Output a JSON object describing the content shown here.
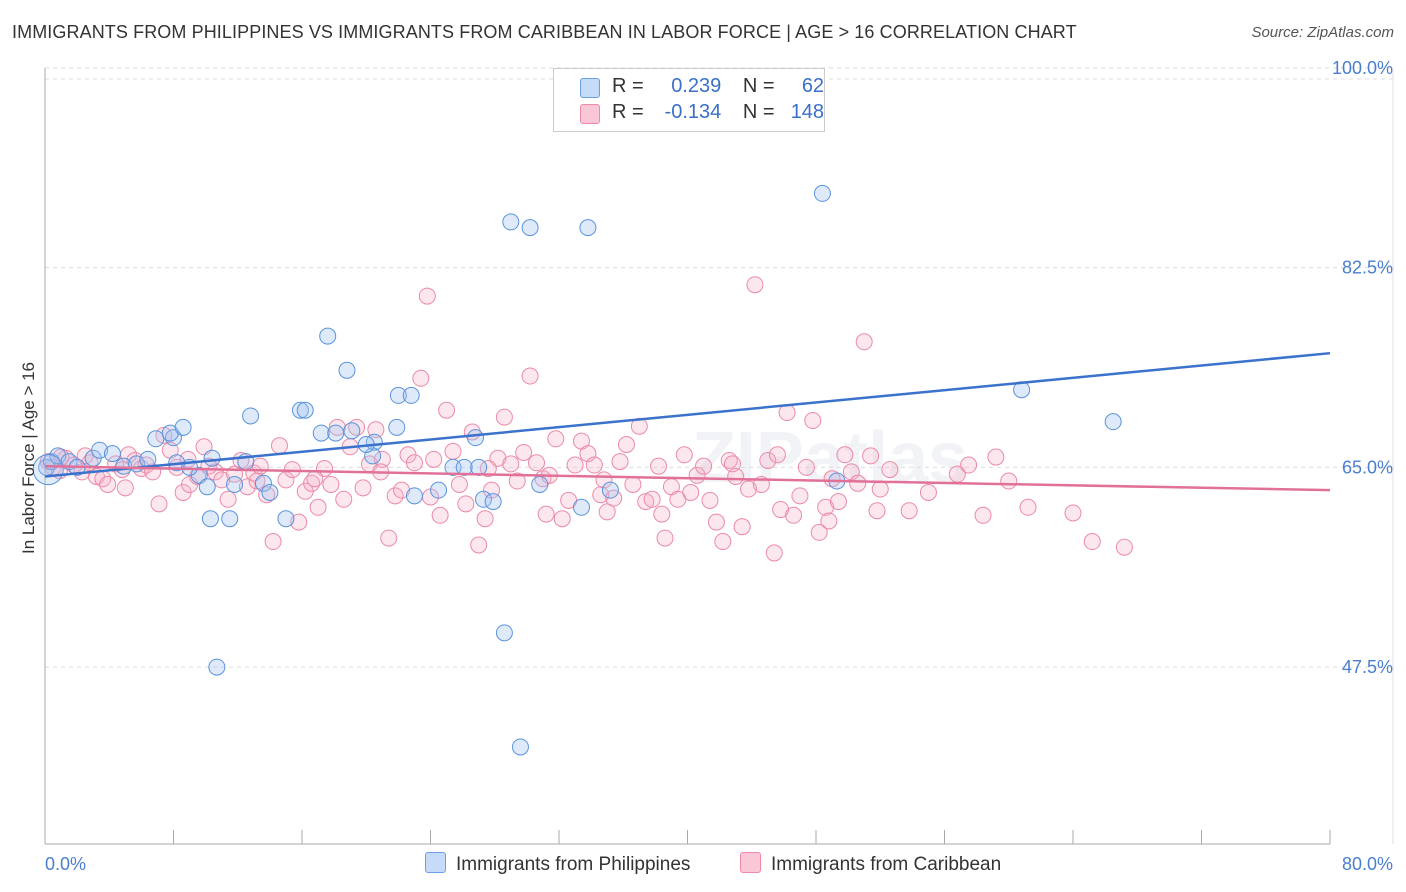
{
  "header": {
    "title": "IMMIGRANTS FROM PHILIPPINES VS IMMIGRANTS FROM CARIBBEAN IN LABOR FORCE | AGE > 16 CORRELATION CHART",
    "source": "Source: ZipAtlas.com"
  },
  "legend_top": [
    {
      "r_label": "R =",
      "r_value": "0.239",
      "n_label": "N =",
      "n_value": "62",
      "color": "#6aa0e8"
    },
    {
      "r_label": "R =",
      "r_value": "-0.134",
      "n_label": "N =",
      "n_value": "148",
      "color": "#f08aa8"
    }
  ],
  "watermark": "ZIPatlas",
  "chart_data": {
    "type": "scatter",
    "title": "IMMIGRANTS FROM PHILIPPINES VS IMMIGRANTS FROM CARIBBEAN IN LABOR FORCE | AGE > 16 CORRELATION CHART",
    "xlabel": "",
    "ylabel": "In Labor Force | Age > 16",
    "xlim": [
      0,
      80
    ],
    "ylim": [
      32,
      102
    ],
    "x_tick_labels": [
      "0.0%",
      "80.0%"
    ],
    "y_ticks": [
      47.5,
      65.0,
      82.5,
      100.0
    ],
    "y_tick_labels": [
      "47.5%",
      "65.0%",
      "82.5%",
      "100.0%"
    ],
    "grid": "horizontal dashed",
    "legend": "bottom-center",
    "series": [
      {
        "name": "Immigrants from Philippines",
        "color": "#6aa0e8",
        "trend": {
          "x": [
            0,
            80
          ],
          "y": [
            64.2,
            75.0
          ]
        },
        "points": [
          [
            0.1,
            65.0
          ],
          [
            0.4,
            65.5
          ],
          [
            0.8,
            66.0
          ],
          [
            1.5,
            65.5
          ],
          [
            2.0,
            65.0
          ],
          [
            3.0,
            65.8
          ],
          [
            3.4,
            66.5
          ],
          [
            4.2,
            66.2
          ],
          [
            4.9,
            65.1
          ],
          [
            5.7,
            65.3
          ],
          [
            6.4,
            65.7
          ],
          [
            6.9,
            67.5
          ],
          [
            8.0,
            67.6
          ],
          [
            8.2,
            65.4
          ],
          [
            7.8,
            68.0
          ],
          [
            8.6,
            68.5
          ],
          [
            9.6,
            64.3
          ],
          [
            9.0,
            65.0
          ],
          [
            10.1,
            63.3
          ],
          [
            10.3,
            60.5
          ],
          [
            10.4,
            65.8
          ],
          [
            10.7,
            47.5
          ],
          [
            11.5,
            60.5
          ],
          [
            11.8,
            63.5
          ],
          [
            12.5,
            65.5
          ],
          [
            12.8,
            69.5
          ],
          [
            13.6,
            63.6
          ],
          [
            14.0,
            62.8
          ],
          [
            15.0,
            60.5
          ],
          [
            15.9,
            70.0
          ],
          [
            16.2,
            70.0
          ],
          [
            17.2,
            68.0
          ],
          [
            17.6,
            76.5
          ],
          [
            18.1,
            68.0
          ],
          [
            18.8,
            73.5
          ],
          [
            19.1,
            68.2
          ],
          [
            20.5,
            67.2
          ],
          [
            20.4,
            66.0
          ],
          [
            21.9,
            68.5
          ],
          [
            22.0,
            71.3
          ],
          [
            22.8,
            71.3
          ],
          [
            23.0,
            62.5
          ],
          [
            24.5,
            63.0
          ],
          [
            25.4,
            65.0
          ],
          [
            26.1,
            65.0
          ],
          [
            26.8,
            67.6
          ],
          [
            27.3,
            62.2
          ],
          [
            27.9,
            62.0
          ],
          [
            28.6,
            50.5
          ],
          [
            29.0,
            86.5
          ],
          [
            30.2,
            86.0
          ],
          [
            30.8,
            63.5
          ],
          [
            33.4,
            61.5
          ],
          [
            33.8,
            86.0
          ],
          [
            35.2,
            63.0
          ],
          [
            29.6,
            40.5
          ],
          [
            48.4,
            89.0
          ],
          [
            49.3,
            63.8
          ],
          [
            60.8,
            71.8
          ],
          [
            66.5,
            69.0
          ],
          [
            27.0,
            65.0
          ],
          [
            20.0,
            67.0
          ]
        ]
      },
      {
        "name": "Immigrants from Caribbean",
        "color": "#f08aa8",
        "trend": {
          "x": [
            0,
            80
          ],
          "y": [
            65.1,
            63.0
          ]
        },
        "points": [
          [
            0.2,
            65.5
          ],
          [
            0.5,
            65.0
          ],
          [
            0.9,
            64.7
          ],
          [
            1.3,
            65.8
          ],
          [
            1.8,
            65.2
          ],
          [
            2.3,
            64.6
          ],
          [
            2.8,
            65.4
          ],
          [
            3.2,
            64.2
          ],
          [
            3.6,
            64.0
          ],
          [
            3.9,
            63.5
          ],
          [
            4.4,
            65.3
          ],
          [
            4.8,
            64.8
          ],
          [
            5.2,
            66.1
          ],
          [
            5.6,
            65.6
          ],
          [
            6.0,
            64.9
          ],
          [
            6.3,
            65.2
          ],
          [
            6.7,
            64.6
          ],
          [
            7.1,
            61.8
          ],
          [
            7.4,
            67.8
          ],
          [
            7.8,
            66.5
          ],
          [
            8.2,
            65.0
          ],
          [
            8.6,
            62.8
          ],
          [
            9.0,
            63.5
          ],
          [
            9.5,
            64.2
          ],
          [
            9.9,
            66.8
          ],
          [
            10.2,
            65.1
          ],
          [
            10.6,
            64.6
          ],
          [
            11.0,
            63.9
          ],
          [
            11.4,
            62.2
          ],
          [
            11.8,
            64.4
          ],
          [
            12.2,
            65.6
          ],
          [
            12.6,
            63.3
          ],
          [
            13.0,
            64.5
          ],
          [
            13.4,
            65.1
          ],
          [
            13.8,
            62.6
          ],
          [
            14.2,
            58.5
          ],
          [
            14.6,
            66.9
          ],
          [
            15.0,
            63.9
          ],
          [
            15.4,
            64.8
          ],
          [
            15.8,
            60.2
          ],
          [
            16.2,
            62.9
          ],
          [
            16.6,
            63.6
          ],
          [
            17.0,
            61.5
          ],
          [
            17.4,
            64.9
          ],
          [
            17.8,
            63.5
          ],
          [
            18.2,
            68.5
          ],
          [
            18.6,
            62.2
          ],
          [
            19.0,
            66.8
          ],
          [
            19.4,
            68.5
          ],
          [
            19.8,
            63.2
          ],
          [
            20.2,
            65.3
          ],
          [
            20.6,
            68.3
          ],
          [
            21.0,
            65.7
          ],
          [
            21.4,
            58.8
          ],
          [
            21.8,
            62.5
          ],
          [
            22.2,
            63.0
          ],
          [
            22.6,
            66.1
          ],
          [
            23.0,
            65.4
          ],
          [
            23.4,
            72.8
          ],
          [
            23.8,
            80.0
          ],
          [
            24.2,
            65.7
          ],
          [
            24.6,
            60.8
          ],
          [
            25.0,
            70.0
          ],
          [
            25.4,
            66.4
          ],
          [
            25.8,
            63.5
          ],
          [
            26.2,
            61.8
          ],
          [
            26.6,
            68.1
          ],
          [
            27.0,
            58.2
          ],
          [
            27.4,
            60.5
          ],
          [
            27.8,
            63.0
          ],
          [
            28.2,
            65.8
          ],
          [
            28.6,
            69.4
          ],
          [
            29.0,
            65.3
          ],
          [
            29.4,
            63.8
          ],
          [
            29.8,
            66.3
          ],
          [
            30.2,
            73.0
          ],
          [
            30.6,
            65.4
          ],
          [
            31.0,
            64.0
          ],
          [
            31.4,
            64.3
          ],
          [
            31.8,
            67.5
          ],
          [
            32.2,
            60.5
          ],
          [
            32.6,
            62.1
          ],
          [
            33.0,
            65.2
          ],
          [
            33.4,
            67.3
          ],
          [
            33.8,
            66.2
          ],
          [
            34.2,
            65.2
          ],
          [
            34.6,
            62.6
          ],
          [
            35.0,
            61.1
          ],
          [
            35.4,
            62.3
          ],
          [
            35.8,
            65.5
          ],
          [
            36.2,
            67.0
          ],
          [
            36.6,
            63.5
          ],
          [
            37.0,
            68.6
          ],
          [
            37.4,
            62.0
          ],
          [
            37.8,
            62.2
          ],
          [
            38.2,
            65.1
          ],
          [
            38.6,
            58.8
          ],
          [
            39.0,
            63.3
          ],
          [
            39.4,
            62.2
          ],
          [
            39.8,
            66.1
          ],
          [
            40.2,
            62.8
          ],
          [
            40.6,
            64.3
          ],
          [
            41.0,
            65.1
          ],
          [
            41.4,
            62.1
          ],
          [
            41.8,
            60.2
          ],
          [
            42.2,
            58.5
          ],
          [
            42.6,
            65.6
          ],
          [
            43.0,
            64.2
          ],
          [
            43.4,
            59.8
          ],
          [
            43.8,
            63.1
          ],
          [
            44.2,
            81.0
          ],
          [
            44.6,
            63.5
          ],
          [
            45.0,
            65.6
          ],
          [
            45.4,
            57.5
          ],
          [
            45.8,
            61.3
          ],
          [
            46.2,
            69.8
          ],
          [
            46.6,
            60.8
          ],
          [
            47.0,
            62.5
          ],
          [
            47.4,
            65.0
          ],
          [
            47.8,
            69.1
          ],
          [
            48.2,
            59.3
          ],
          [
            48.6,
            61.5
          ],
          [
            49.0,
            64.0
          ],
          [
            49.4,
            62.0
          ],
          [
            49.8,
            66.1
          ],
          [
            50.2,
            64.6
          ],
          [
            50.6,
            63.6
          ],
          [
            51.0,
            76.0
          ],
          [
            51.4,
            66.0
          ],
          [
            51.8,
            61.2
          ],
          [
            52.6,
            64.8
          ],
          [
            53.8,
            61.2
          ],
          [
            56.8,
            64.4
          ],
          [
            57.5,
            65.2
          ],
          [
            58.4,
            60.8
          ],
          [
            59.2,
            65.9
          ],
          [
            61.2,
            61.5
          ],
          [
            64.0,
            61.0
          ],
          [
            65.2,
            58.5
          ],
          [
            67.2,
            58.0
          ],
          [
            1.0,
            65.9
          ],
          [
            2.5,
            66.0
          ],
          [
            5.0,
            63.2
          ],
          [
            8.9,
            65.7
          ],
          [
            13.2,
            63.8
          ],
          [
            16.8,
            64.0
          ],
          [
            20.9,
            64.6
          ],
          [
            24.0,
            62.4
          ],
          [
            27.6,
            64.9
          ],
          [
            31.2,
            60.9
          ],
          [
            34.8,
            63.9
          ],
          [
            38.4,
            60.9
          ],
          [
            42.8,
            65.3
          ],
          [
            45.6,
            66.1
          ],
          [
            48.8,
            60.3
          ],
          [
            52.0,
            63.1
          ],
          [
            55.0,
            62.8
          ],
          [
            60.0,
            63.8
          ]
        ]
      }
    ]
  }
}
